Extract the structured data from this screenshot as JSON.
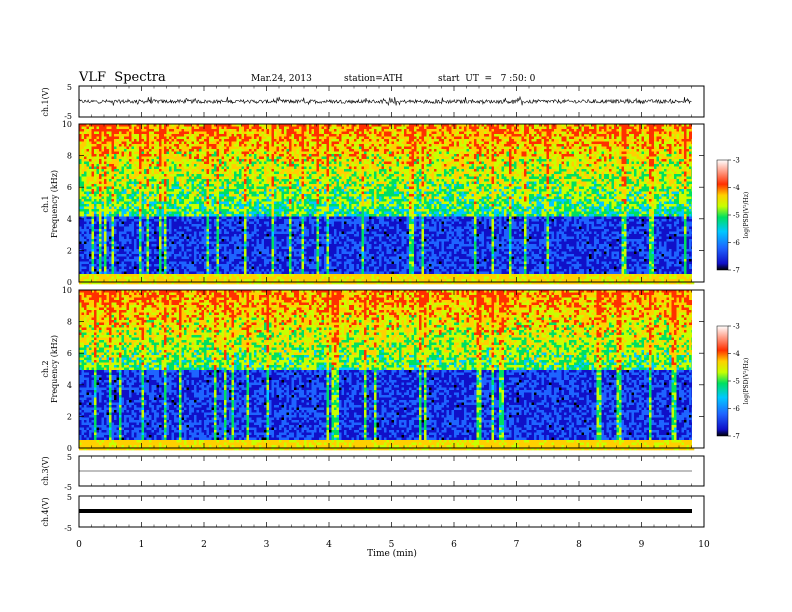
{
  "header": {
    "title": "VLF  Spectra",
    "date": "Mar.24, 2013",
    "station": "station=ATH",
    "start": "start  UT  =   7 :50: 0"
  },
  "chart_data": [
    {
      "type": "line",
      "panel": "ch1-waveform",
      "ylabel": "ch.1(V)",
      "y_ticks": [
        "5",
        "-5"
      ],
      "ylim": [
        -5,
        5
      ],
      "xlim": [
        0,
        10
      ],
      "description_values": "noisy waveform around 0 V, amplitude about +-1 V with spikes"
    },
    {
      "type": "heatmap",
      "panel": "ch1-spectrogram",
      "ylabel_top": "ch.1",
      "ylabel": "Frequency  (kHz)",
      "y_ticks": [
        "0",
        "2",
        "4",
        "6",
        "8",
        "10"
      ],
      "ylim": [
        0,
        10
      ],
      "xlim": [
        0,
        9.8
      ],
      "colorbar": {
        "label": "log(PSD(V²/Hz)",
        "ticks": [
          "-3",
          "-4",
          "-5",
          "-6",
          "-7"
        ],
        "range": [
          -7,
          -3
        ]
      },
      "low_band_max_khz": 4.2
    },
    {
      "type": "heatmap",
      "panel": "ch2-spectrogram",
      "ylabel_top": "ch.2",
      "ylabel": "Frequency  (kHz)",
      "y_ticks": [
        "0",
        "2",
        "4",
        "6",
        "8",
        "10"
      ],
      "ylim": [
        0,
        10
      ],
      "xlim": [
        0,
        9.8
      ],
      "colorbar": {
        "label": "log(PSD(V²/Hz)",
        "ticks": [
          "-3",
          "-4",
          "-5",
          "-6",
          "-7"
        ],
        "range": [
          -7,
          -3
        ]
      },
      "low_band_max_khz": 5.0
    },
    {
      "type": "line",
      "panel": "ch3-waveform",
      "ylabel": "ch.3(V)",
      "y_ticks": [
        "5",
        "-5"
      ],
      "ylim": [
        -5,
        5
      ]
    },
    {
      "type": "line",
      "panel": "ch4-waveform",
      "ylabel": "ch.4(V)",
      "y_ticks": [
        "5",
        "-5"
      ],
      "ylim": [
        -5,
        5
      ]
    }
  ],
  "x_axis": {
    "label": "Time  (min)",
    "ticks": [
      "0",
      "1",
      "2",
      "3",
      "4",
      "5",
      "6",
      "7",
      "8",
      "9",
      "10"
    ],
    "xlim": [
      0,
      10
    ]
  },
  "colors": {
    "scale": [
      "#000000",
      "#1010c8",
      "#1e64ff",
      "#00c8ff",
      "#00e060",
      "#c8ff00",
      "#ffd000",
      "#ff3000",
      "#ffffff"
    ]
  }
}
